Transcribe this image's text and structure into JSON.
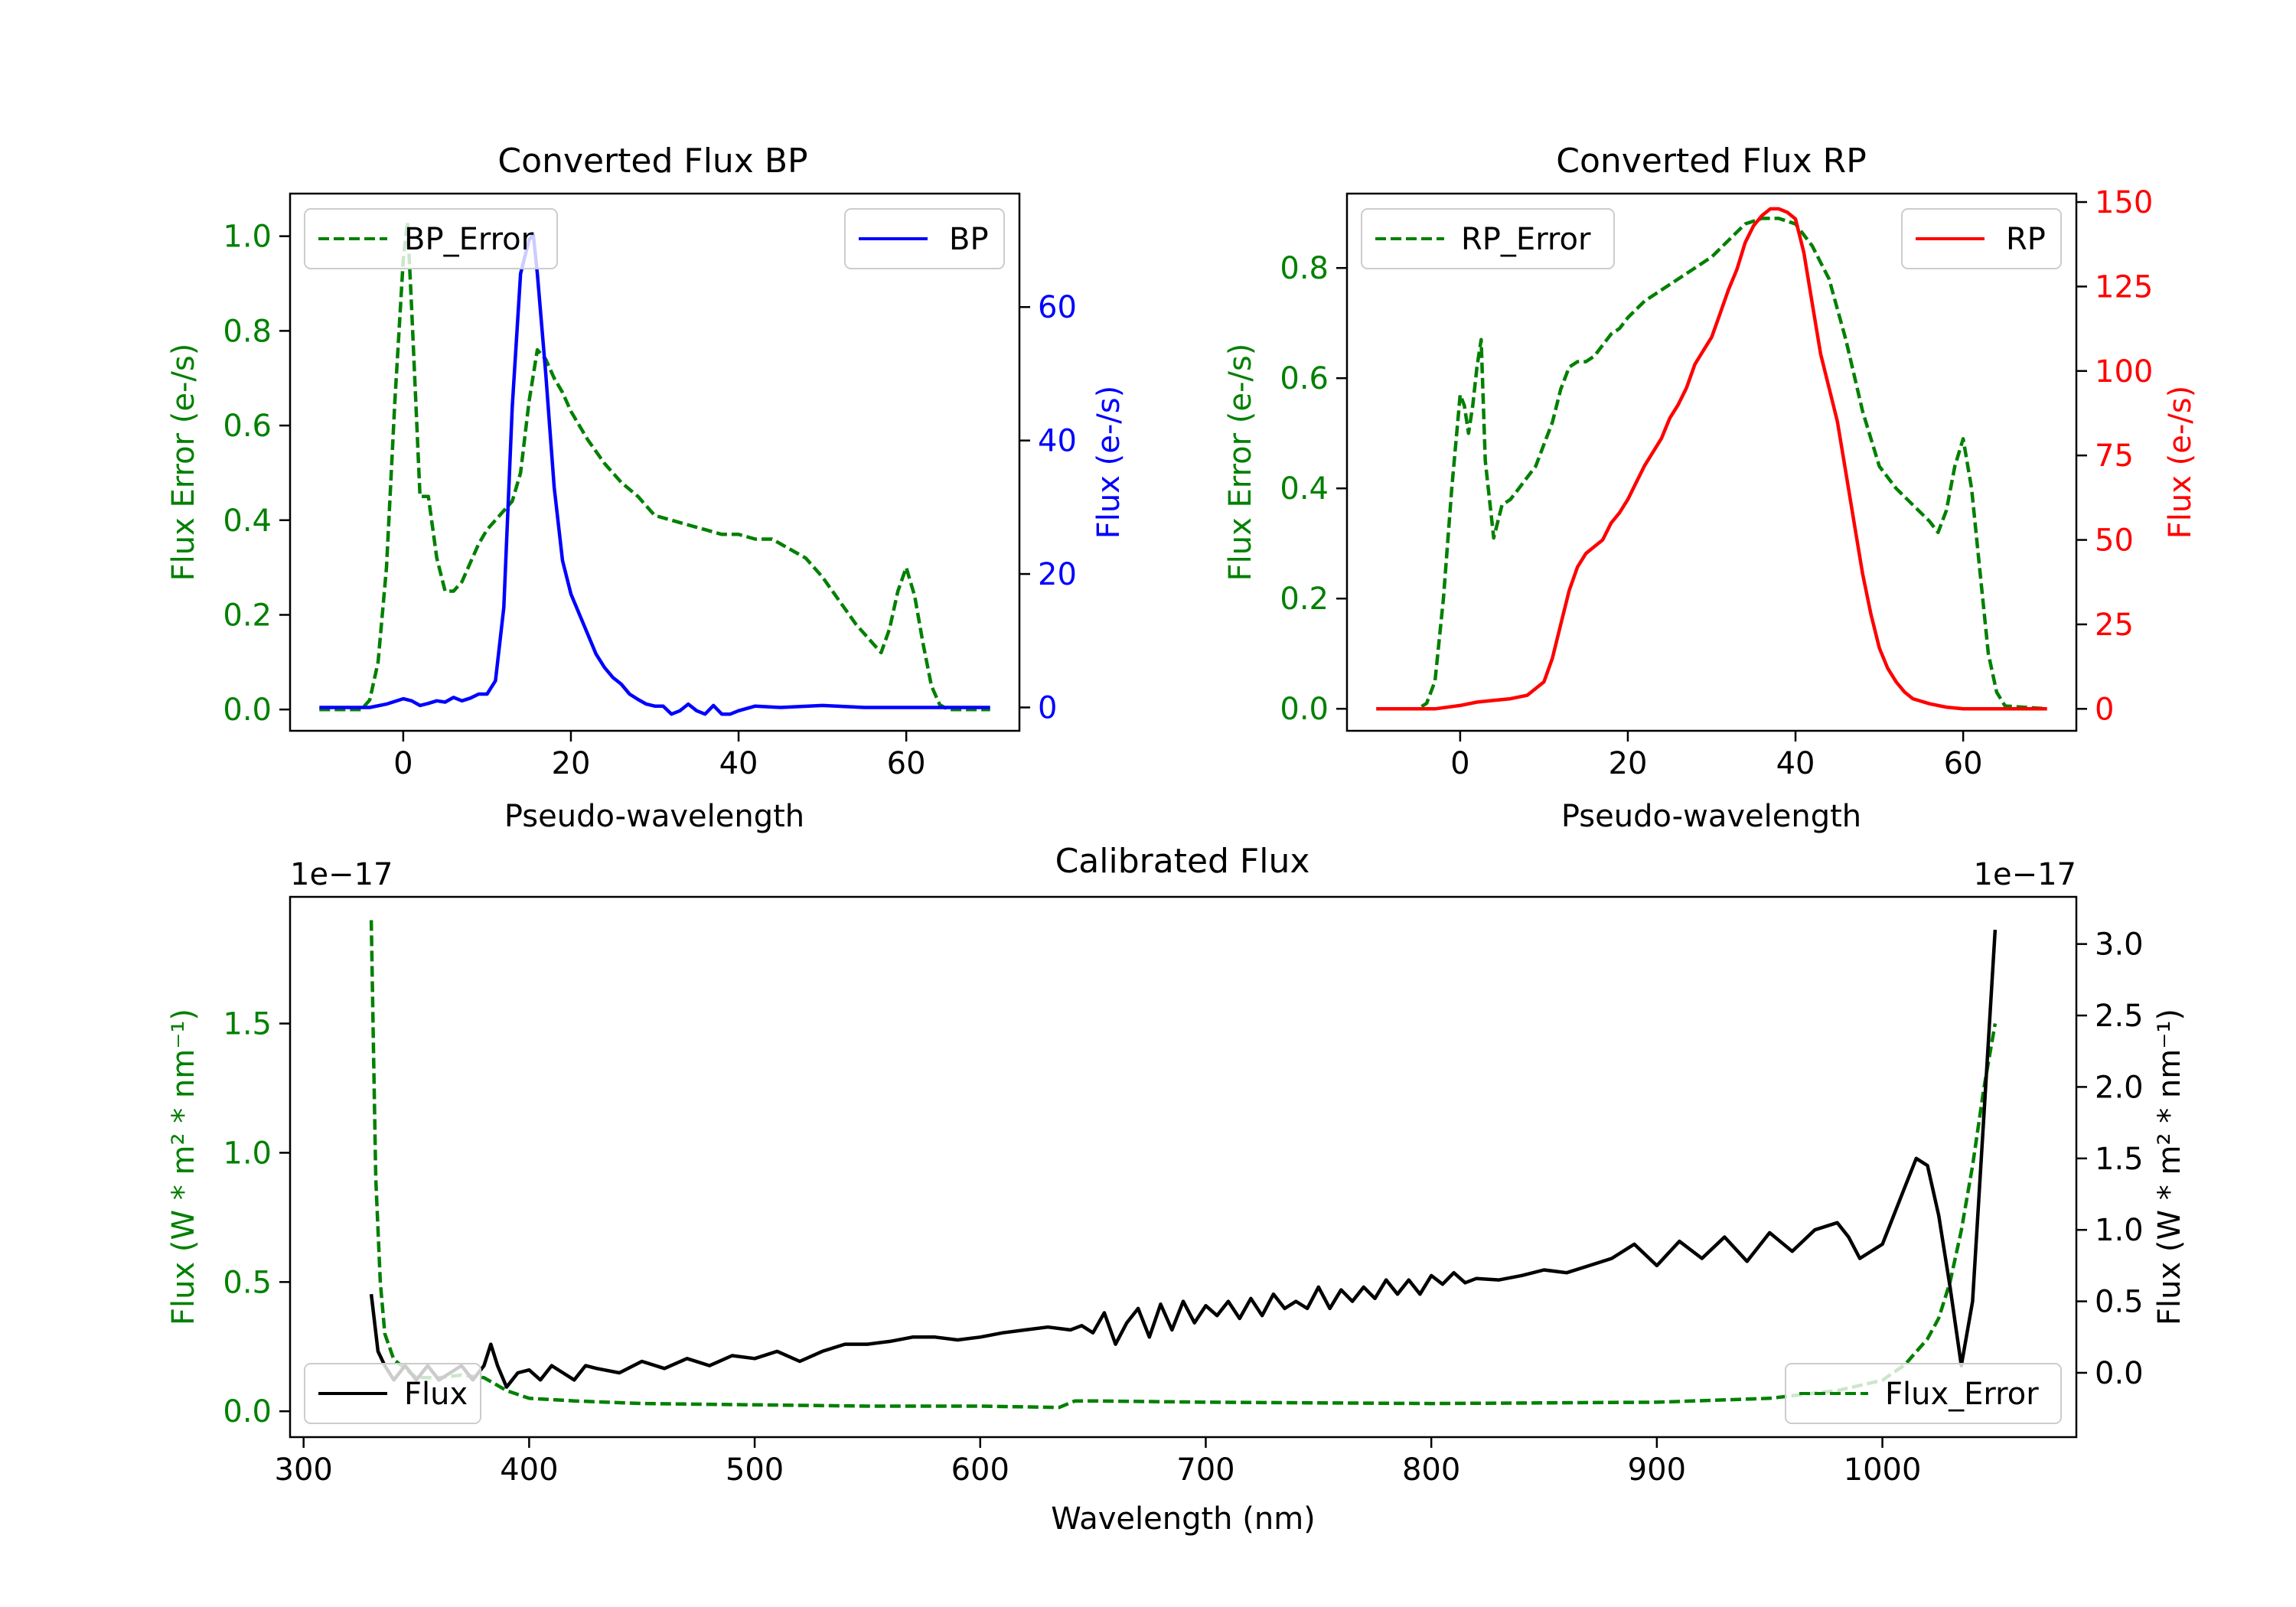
{
  "colors": {
    "green": "#008000",
    "blue": "#0000ff",
    "red": "#ff0000",
    "black": "#000000"
  },
  "chart_data": [
    {
      "type": "line",
      "title": "Converted Flux BP",
      "xlabel": "Pseudo-wavelength",
      "ylabel_left": "Flux Error (e-/s)",
      "ylabel_right": "Flux (e-/s)",
      "xlim": [
        -13.5,
        73.5
      ],
      "ylim_left": [
        -0.045,
        1.09
      ],
      "ylim_right": [
        -3.5,
        77
      ],
      "xticks": [
        0,
        20,
        40,
        60
      ],
      "yticks_left": [
        "0.0",
        "0.2",
        "0.4",
        "0.6",
        "0.8",
        "1.0"
      ],
      "yticks_right": [
        "0",
        "20",
        "40",
        "60"
      ],
      "xtick_labels": [
        "0",
        "20",
        "40",
        "60"
      ],
      "yticks_left_values": [
        0,
        0.2,
        0.4,
        0.6,
        0.8,
        1.0
      ],
      "yticks_right_values": [
        0,
        20,
        40,
        60
      ],
      "legend_left": "BP_Error",
      "legend_right": "BP",
      "series": [
        {
          "name": "BP_Error",
          "axis": "left",
          "color": "#008000",
          "style": "dashed",
          "x": [
            -10,
            -5,
            -4,
            -3,
            -2,
            -1,
            0,
            0.5,
            1,
            2,
            3,
            4,
            5,
            6,
            7,
            8,
            9,
            10,
            12,
            13,
            14,
            15,
            16,
            17,
            18,
            19,
            20,
            22,
            24,
            26,
            28,
            30,
            32,
            34,
            36,
            38,
            40,
            42,
            44,
            46,
            48,
            50,
            52,
            54,
            56,
            57,
            58,
            59,
            60,
            61,
            62,
            63,
            64,
            65,
            70
          ],
          "y": [
            0,
            0,
            0.02,
            0.1,
            0.3,
            0.65,
            0.95,
            1.03,
            0.85,
            0.45,
            0.45,
            0.32,
            0.25,
            0.25,
            0.27,
            0.31,
            0.35,
            0.38,
            0.42,
            0.44,
            0.5,
            0.65,
            0.76,
            0.74,
            0.7,
            0.67,
            0.63,
            0.57,
            0.52,
            0.48,
            0.45,
            0.41,
            0.4,
            0.39,
            0.38,
            0.37,
            0.37,
            0.36,
            0.36,
            0.34,
            0.32,
            0.28,
            0.23,
            0.18,
            0.14,
            0.12,
            0.17,
            0.25,
            0.3,
            0.24,
            0.14,
            0.05,
            0.01,
            0,
            0
          ]
        },
        {
          "name": "BP",
          "axis": "right",
          "color": "#0000ff",
          "style": "solid",
          "x": [
            -10,
            -4,
            -2,
            0,
            1,
            2,
            3,
            4,
            5,
            6,
            7,
            8,
            9,
            10,
            11,
            12,
            13,
            14,
            15,
            15.5,
            16,
            17,
            18,
            19,
            20,
            21,
            22,
            23,
            24,
            25,
            26,
            27,
            28,
            29,
            30,
            31,
            32,
            33,
            34,
            35,
            36,
            37,
            38,
            39,
            40,
            42,
            45,
            50,
            55,
            60,
            65,
            70
          ],
          "y": [
            0,
            0,
            0.5,
            1.3,
            1.0,
            0.3,
            0.6,
            1.0,
            0.8,
            1.5,
            1.0,
            1.4,
            2.0,
            2.0,
            4.0,
            15,
            45,
            65,
            70,
            71,
            65,
            50,
            33,
            22,
            17,
            14,
            11,
            8,
            6,
            4.5,
            3.5,
            2.0,
            1.2,
            0.5,
            0.2,
            0.2,
            -1,
            -0.5,
            0.5,
            -0.5,
            -1.0,
            0.3,
            -1.0,
            -1.0,
            -0.5,
            0.2,
            0,
            0.3,
            0,
            0,
            0,
            0
          ]
        }
      ]
    },
    {
      "type": "line",
      "title": "Converted Flux RP",
      "xlabel": "Pseudo-wavelength",
      "ylabel_left": "Flux Error (e-/s)",
      "ylabel_right": "Flux (e-/s)",
      "xlim": [
        -13.5,
        73.5
      ],
      "ylim_left": [
        -0.04,
        0.935
      ],
      "ylim_right": [
        -6.5,
        152.5
      ],
      "xticks": [
        0,
        20,
        40,
        60
      ],
      "yticks_left": [
        "0.0",
        "0.2",
        "0.4",
        "0.6",
        "0.8"
      ],
      "yticks_right": [
        "0",
        "25",
        "50",
        "75",
        "100",
        "125",
        "150"
      ],
      "xtick_labels": [
        "0",
        "20",
        "40",
        "60"
      ],
      "yticks_left_values": [
        0,
        0.2,
        0.4,
        0.6,
        0.8
      ],
      "yticks_right_values": [
        0,
        25,
        50,
        75,
        100,
        125,
        150
      ],
      "legend_left": "RP_Error",
      "legend_right": "RP",
      "series": [
        {
          "name": "RP_Error",
          "axis": "left",
          "color": "#008000",
          "style": "dashed",
          "x": [
            -10,
            -5,
            -4,
            -3,
            -2,
            -1,
            0,
            0.5,
            1,
            1.5,
            2,
            2.5,
            3,
            3.5,
            4,
            5,
            6,
            7,
            8,
            9,
            10,
            11,
            12,
            13,
            14,
            15,
            16,
            17,
            18,
            19,
            20,
            22,
            24,
            26,
            28,
            30,
            32,
            34,
            36,
            38,
            40,
            42,
            44,
            46,
            48,
            50,
            52,
            54,
            56,
            57,
            58,
            59,
            60,
            61,
            62,
            63,
            64,
            65,
            70
          ],
          "y": [
            0,
            0,
            0.01,
            0.05,
            0.2,
            0.4,
            0.57,
            0.55,
            0.5,
            0.55,
            0.62,
            0.67,
            0.45,
            0.38,
            0.31,
            0.37,
            0.38,
            0.4,
            0.42,
            0.44,
            0.48,
            0.52,
            0.58,
            0.62,
            0.63,
            0.63,
            0.64,
            0.66,
            0.68,
            0.69,
            0.71,
            0.74,
            0.76,
            0.78,
            0.8,
            0.82,
            0.85,
            0.88,
            0.89,
            0.89,
            0.88,
            0.84,
            0.78,
            0.67,
            0.54,
            0.44,
            0.4,
            0.37,
            0.34,
            0.32,
            0.36,
            0.44,
            0.49,
            0.4,
            0.25,
            0.1,
            0.03,
            0.005,
            0
          ]
        },
        {
          "name": "RP",
          "axis": "right",
          "color": "#ff0000",
          "style": "solid",
          "x": [
            -10,
            -3,
            0,
            2,
            4,
            6,
            8,
            10,
            11,
            12,
            13,
            14,
            15,
            16,
            17,
            18,
            19,
            20,
            21,
            22,
            23,
            24,
            25,
            26,
            27,
            28,
            29,
            30,
            31,
            32,
            33,
            34,
            35,
            36,
            37,
            38,
            39,
            40,
            41,
            42,
            43,
            44,
            45,
            46,
            47,
            48,
            49,
            50,
            51,
            52,
            53,
            54,
            56,
            58,
            60,
            62,
            65,
            70
          ],
          "y": [
            0,
            0,
            1,
            2,
            2.5,
            3,
            4,
            8,
            15,
            25,
            35,
            42,
            46,
            48,
            50,
            55,
            58,
            62,
            67,
            72,
            76,
            80,
            86,
            90,
            95,
            102,
            106,
            110,
            117,
            124,
            130,
            138,
            143,
            146,
            148,
            148,
            147,
            145,
            135,
            120,
            105,
            95,
            85,
            70,
            55,
            40,
            28,
            18,
            12,
            8,
            5,
            3,
            1.5,
            0.5,
            0,
            0,
            0,
            0
          ]
        }
      ]
    },
    {
      "type": "line",
      "title": "Calibrated Flux",
      "xlabel": "Wavelength (nm)",
      "ylabel_left": "Flux (W * m² * nm⁻¹)",
      "ylabel_right": "Flux (W * m² * nm⁻¹)",
      "offset_left": "1e−17",
      "offset_right": "1e−17",
      "xlim": [
        294,
        1086
      ],
      "ylim_left": [
        -0.1,
        1.99
      ],
      "ylim_right": [
        -0.45,
        3.33
      ],
      "xticks": [
        300,
        400,
        500,
        600,
        700,
        800,
        900,
        1000
      ],
      "yticks_left": [
        "0.0",
        "0.5",
        "1.0",
        "1.5"
      ],
      "yticks_right": [
        "0.0",
        "0.5",
        "1.0",
        "1.5",
        "2.0",
        "2.5",
        "3.0"
      ],
      "xtick_labels": [
        "300",
        "400",
        "500",
        "600",
        "700",
        "800",
        "900",
        "1000"
      ],
      "yticks_left_values": [
        0,
        0.5,
        1.0,
        1.5
      ],
      "yticks_right_values": [
        0,
        0.5,
        1.0,
        1.5,
        2.0,
        2.5,
        3.0
      ],
      "legend_left": "Flux",
      "legend_right": "Flux_Error",
      "series": [
        {
          "name": "Flux_Error",
          "axis": "left",
          "color": "#008000",
          "style": "dashed",
          "x": [
            330,
            331,
            332,
            334,
            336,
            340,
            350,
            360,
            370,
            380,
            390,
            400,
            420,
            450,
            500,
            550,
            600,
            635,
            642,
            650,
            700,
            800,
            900,
            950,
            980,
            1000,
            1010,
            1020,
            1025,
            1030,
            1035,
            1040,
            1045,
            1050
          ],
          "y": [
            1.9,
            1.4,
            0.9,
            0.5,
            0.3,
            0.2,
            0.13,
            0.13,
            0.14,
            0.13,
            0.08,
            0.05,
            0.04,
            0.03,
            0.025,
            0.02,
            0.02,
            0.015,
            0.04,
            0.04,
            0.035,
            0.03,
            0.035,
            0.05,
            0.08,
            0.12,
            0.18,
            0.28,
            0.36,
            0.5,
            0.7,
            0.95,
            1.25,
            1.5
          ]
        },
        {
          "name": "Flux",
          "axis": "right",
          "color": "#000000",
          "style": "solid",
          "x": [
            330,
            333,
            336,
            340,
            345,
            350,
            355,
            360,
            365,
            370,
            375,
            380,
            383,
            386,
            390,
            395,
            400,
            405,
            410,
            415,
            420,
            425,
            430,
            440,
            450,
            460,
            470,
            480,
            490,
            500,
            510,
            520,
            530,
            540,
            550,
            560,
            570,
            580,
            590,
            600,
            610,
            620,
            630,
            640,
            645,
            650,
            655,
            660,
            665,
            670,
            675,
            680,
            685,
            690,
            695,
            700,
            705,
            710,
            715,
            720,
            725,
            730,
            735,
            740,
            745,
            750,
            755,
            760,
            765,
            770,
            775,
            780,
            785,
            790,
            795,
            800,
            805,
            810,
            815,
            820,
            830,
            840,
            850,
            860,
            870,
            880,
            890,
            900,
            910,
            920,
            930,
            940,
            950,
            960,
            970,
            980,
            985,
            990,
            1000,
            1010,
            1015,
            1020,
            1025,
            1030,
            1035,
            1040,
            1045,
            1050
          ],
          "y": [
            0.55,
            0.15,
            0.05,
            -0.05,
            0.05,
            -0.05,
            0.05,
            -0.05,
            0.0,
            0.05,
            -0.05,
            0.05,
            0.2,
            0.05,
            -0.1,
            0.0,
            0.02,
            -0.05,
            0.05,
            0.0,
            -0.05,
            0.05,
            0.03,
            0.0,
            0.08,
            0.03,
            0.1,
            0.05,
            0.12,
            0.1,
            0.15,
            0.08,
            0.15,
            0.2,
            0.2,
            0.22,
            0.25,
            0.25,
            0.23,
            0.25,
            0.28,
            0.3,
            0.32,
            0.3,
            0.33,
            0.28,
            0.42,
            0.2,
            0.35,
            0.45,
            0.25,
            0.48,
            0.3,
            0.5,
            0.35,
            0.47,
            0.4,
            0.5,
            0.38,
            0.52,
            0.4,
            0.55,
            0.45,
            0.5,
            0.45,
            0.6,
            0.45,
            0.58,
            0.5,
            0.6,
            0.52,
            0.65,
            0.55,
            0.65,
            0.55,
            0.68,
            0.62,
            0.7,
            0.63,
            0.66,
            0.65,
            0.68,
            0.72,
            0.7,
            0.75,
            0.8,
            0.9,
            0.75,
            0.92,
            0.8,
            0.95,
            0.78,
            0.98,
            0.85,
            1.0,
            1.05,
            0.95,
            0.8,
            0.9,
            1.3,
            1.5,
            1.45,
            1.1,
            0.6,
            0.05,
            0.5,
            1.8,
            3.1
          ]
        }
      ]
    }
  ]
}
